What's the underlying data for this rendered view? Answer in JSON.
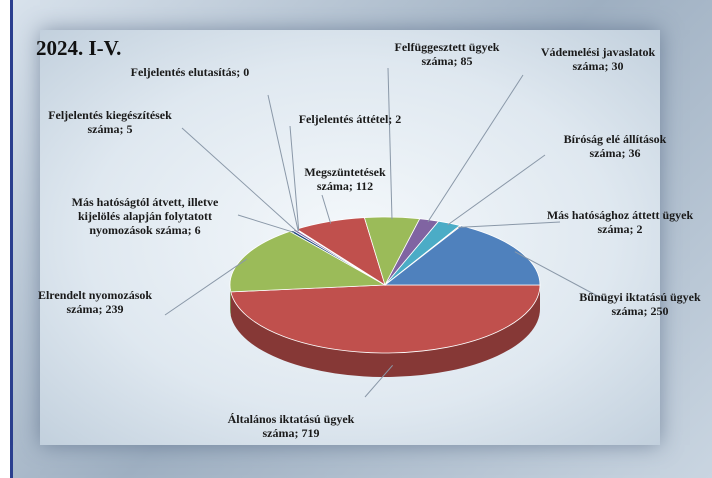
{
  "chart_data": {
    "type": "pie",
    "title": "2024. I-V.",
    "values": [
      719,
      239,
      6,
      5,
      0,
      2,
      112,
      85,
      30,
      36,
      2,
      250
    ],
    "value_labels": [
      "Általános iktatású ügyek száma; 719",
      "Elrendelt nyomozások száma; 239",
      "Más hatóságtól átvett, illetve kijelölés alapján folytatott nyomozások száma; 6",
      "Feljelentés kiegészítések száma; 5",
      "Feljelentés elutasítás; 0",
      "Feljelentés áttétel; 2",
      "Megszüntetések száma; 112",
      "Felfüggesztett ügyek száma; 85",
      "Vádemelési javaslatok száma; 30",
      "Bíróság elé állítások száma; 36",
      "Más hatósághoz áttett ügyek száma; 2",
      "Bűnügyi iktatású ügyek száma; 250"
    ],
    "colors": [
      "#c0504d",
      "#9bbb59",
      "#1f497d",
      "#8064a2",
      "#4bacc6",
      "#f79646",
      "#c0504d",
      "#9bbb59",
      "#8064a2",
      "#4bacc6",
      "#f79646",
      "#4f81bd"
    ]
  }
}
